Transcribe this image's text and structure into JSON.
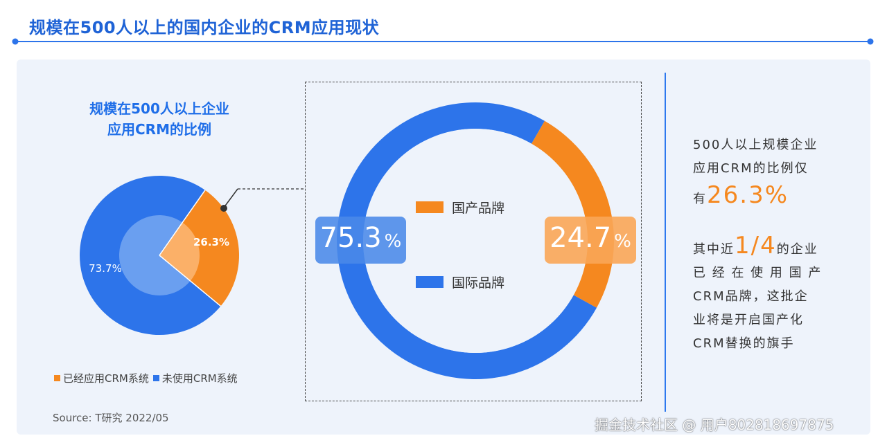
{
  "page_title": "规模在500人以上的国内企业的CRM应用现状",
  "colors": {
    "blue": "#2d74ea",
    "orange": "#f5881f",
    "light_blue": "#6a9ff0",
    "light_orange": "#fbb068"
  },
  "chart_data": [
    {
      "type": "pie",
      "title": "规模在500人以上企业应用CRM的比例",
      "title_lines": [
        "规模在500人以上企业",
        "应用CRM的比例"
      ],
      "series": [
        {
          "name": "已经应用CRM系统",
          "value": 26.3,
          "label": "26.3%",
          "color": "#f5881f"
        },
        {
          "name": "未使用CRM系统",
          "value": 73.7,
          "label": "73.7%",
          "color": "#2d74ea"
        }
      ],
      "legend": [
        "已经应用CRM系统",
        "未使用CRM系统"
      ],
      "legend_position": "bottom-left"
    },
    {
      "type": "pie",
      "series": [
        {
          "name": "国产品牌",
          "value": 24.7,
          "label_num": "24.7",
          "label_pct": "%",
          "color": "#f5881f"
        },
        {
          "name": "国际品牌",
          "value": 75.3,
          "label_num": "75.3",
          "label_pct": "%",
          "color": "#2d74ea"
        }
      ],
      "legend": [
        "国产品牌",
        "国际品牌"
      ],
      "legend_position": "center"
    }
  ],
  "source": "Source: T研究 2022/05",
  "right_text": {
    "p1_line1": "500人以上规模企业",
    "p1_line2": "应用CRM的比例仅",
    "p1_prefix": "有",
    "p1_value": "26.3%",
    "p2_prefix": "其中近",
    "p2_value": "1/4",
    "p2_suffix": "的企业",
    "p2_line2": "已 经 在 使 用 国 产",
    "p2_line3": "CRM品牌，这批企",
    "p2_line4": "业将是开启国产化",
    "p2_line5": "CRM替换的旗手"
  },
  "watermark": "掘金技术社区 @ 用户802818697875"
}
